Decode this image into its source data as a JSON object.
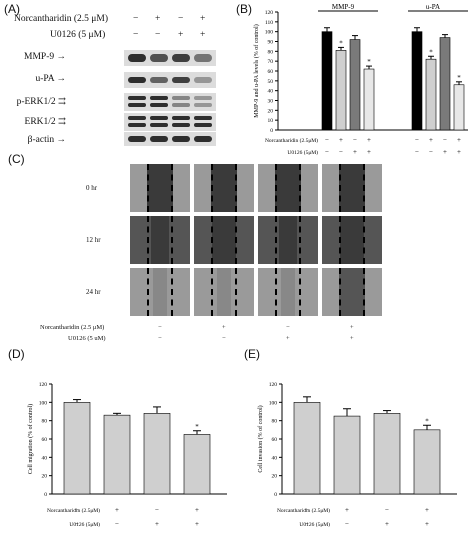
{
  "panel_labels": {
    "a": "(A)",
    "b": "(B)",
    "c": "(C)",
    "d": "(D)",
    "e": "(E)"
  },
  "panel_a": {
    "treatment_rows": [
      {
        "label": "Norcantharidin (2.5 μM)",
        "signs": [
          "−",
          "+",
          "−",
          "+"
        ]
      },
      {
        "label": "U0126 (5 μM)",
        "signs": [
          "−",
          "−",
          "+",
          "+"
        ]
      }
    ],
    "blots": [
      {
        "label": "MMP-9"
      },
      {
        "label": "u-PA"
      },
      {
        "label": "p-ERK1/2"
      },
      {
        "label": "ERK1/2"
      },
      {
        "label": "β-actin"
      }
    ]
  },
  "panel_c": {
    "rows": [
      "0 hr",
      "12 hr",
      "24 hr"
    ],
    "treatment_rows": [
      {
        "label": "Norcantharidin (2.5 μM)",
        "signs": [
          "−",
          "+",
          "−",
          "+"
        ]
      },
      {
        "label": "U0126 (5 uM)",
        "signs": [
          "−",
          "−",
          "+",
          "+"
        ]
      }
    ]
  },
  "chart_data": [
    {
      "id": "B",
      "type": "bar",
      "ylabel": "MMP-9 and u-PA levels (% of control)",
      "ylim": [
        0,
        120
      ],
      "yticks": [
        0,
        10,
        20,
        30,
        40,
        50,
        60,
        70,
        80,
        90,
        100,
        110,
        120
      ],
      "groups": [
        {
          "name": "MMP-9",
          "values": [
            100,
            81,
            92,
            62
          ],
          "errors": [
            4,
            3,
            4,
            3
          ],
          "stars": [
            "",
            "*",
            "",
            "*"
          ]
        },
        {
          "name": "u-PA",
          "values": [
            100,
            72,
            94,
            46
          ],
          "errors": [
            4,
            3,
            3,
            3
          ],
          "stars": [
            "",
            "*",
            "",
            "*"
          ]
        }
      ],
      "bar_colors": [
        "#000000",
        "#cfcfcf",
        "#7a7a7a",
        "#e8e8e8"
      ],
      "treatment_rows": [
        {
          "label": "Norcantharidin (2.5μM)",
          "signs": [
            "−",
            "+",
            "−",
            "+"
          ]
        },
        {
          "label": "U0126 (5μM)",
          "signs": [
            "−",
            "−",
            "+",
            "+"
          ]
        }
      ]
    },
    {
      "id": "D",
      "type": "bar",
      "ylabel": "Cell migration (% of control)",
      "ylim": [
        0,
        120
      ],
      "yticks": [
        0,
        20,
        40,
        60,
        80,
        100,
        120
      ],
      "values": [
        100,
        86,
        88,
        65
      ],
      "errors": [
        3,
        2,
        7,
        4
      ],
      "stars": [
        "",
        "",
        "",
        "*"
      ],
      "treatment_rows": [
        {
          "label": "Norcantharidin (2.5μM)",
          "signs": [
            "−",
            "+",
            "−",
            "+"
          ]
        },
        {
          "label": "U0126 (5μM)",
          "signs": [
            "−",
            "−",
            "+",
            "+"
          ]
        }
      ]
    },
    {
      "id": "E",
      "type": "bar",
      "ylabel": "Cell invasion (% of control)",
      "ylim": [
        0,
        120
      ],
      "yticks": [
        0,
        20,
        40,
        60,
        80,
        100,
        120
      ],
      "values": [
        100,
        85,
        88,
        70
      ],
      "errors": [
        6,
        8,
        3,
        5
      ],
      "stars": [
        "",
        "",
        "",
        "*"
      ],
      "treatment_rows": [
        {
          "label": "Norcantharidin (2.5μM)",
          "signs": [
            "−",
            "+",
            "−",
            "+"
          ]
        },
        {
          "label": "U0126 (5μM)",
          "signs": [
            "−",
            "−",
            "+",
            "+"
          ]
        }
      ]
    }
  ]
}
